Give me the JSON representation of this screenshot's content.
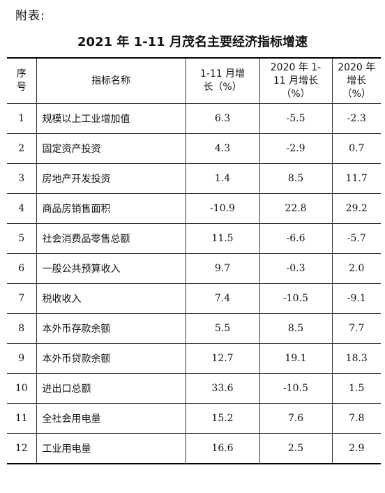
{
  "label": "附表:",
  "title": "2021 年 1-11 月茂名主要经济指标增速",
  "headers": {
    "idx": "序号",
    "name": "指标名称",
    "cur": "1-11 月增长（%）",
    "prev": "2020 年 1-11 月增长（%）",
    "full": "2020 年增长（%）"
  },
  "rows": [
    {
      "idx": "1",
      "name": "规模以上工业增加值",
      "cur": "6.3",
      "prev": "-5.5",
      "full": "-2.3"
    },
    {
      "idx": "2",
      "name": "固定资产投资",
      "cur": "4.3",
      "prev": "-2.9",
      "full": "0.7"
    },
    {
      "idx": "3",
      "name": "房地产开发投资",
      "cur": "1.4",
      "prev": "8.5",
      "full": "11.7"
    },
    {
      "idx": "4",
      "name": "商品房销售面积",
      "cur": "-10.9",
      "prev": "22.8",
      "full": "29.2"
    },
    {
      "idx": "5",
      "name": "社会消费品零售总额",
      "cur": "11.5",
      "prev": "-6.6",
      "full": "-5.7"
    },
    {
      "idx": "6",
      "name": "一般公共预算收入",
      "cur": "9.7",
      "prev": "-0.3",
      "full": "2.0"
    },
    {
      "idx": "7",
      "name": "税收收入",
      "cur": "7.4",
      "prev": "-10.5",
      "full": "-9.1"
    },
    {
      "idx": "8",
      "name": "本外币存款余额",
      "cur": "5.5",
      "prev": "8.5",
      "full": "7.7"
    },
    {
      "idx": "9",
      "name": "本外币贷款余额",
      "cur": "12.7",
      "prev": "19.1",
      "full": "18.3"
    },
    {
      "idx": "10",
      "name": "进出口总额",
      "cur": "33.6",
      "prev": "-10.5",
      "full": "1.5"
    },
    {
      "idx": "11",
      "name": "全社会用电量",
      "cur": "15.2",
      "prev": "7.6",
      "full": "7.8"
    },
    {
      "idx": "12",
      "name": "工业用电量",
      "cur": "16.6",
      "prev": "2.5",
      "full": "2.9"
    }
  ]
}
